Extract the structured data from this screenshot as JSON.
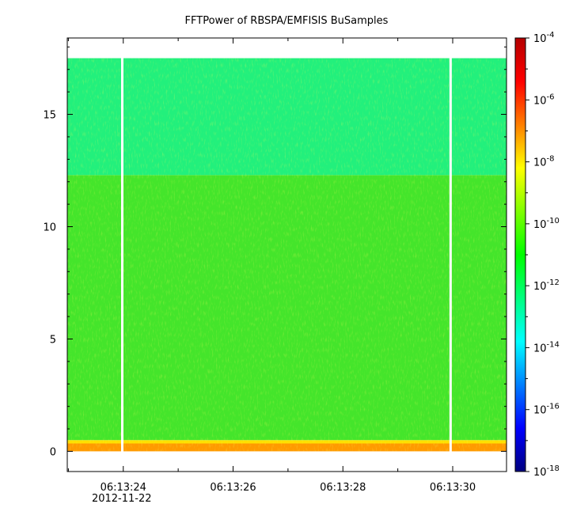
{
  "chart_data": {
    "type": "heatmap",
    "title": "FFTPower of RBSPA/EMFISIS  BuSamples",
    "xlabel": "",
    "ylabel": "",
    "x_ticks": [
      {
        "time_s": 23.52,
        "label": "06:13:24",
        "sublabel": "2012-11-22"
      },
      {
        "time_s": 25.52,
        "label": "06:13:26"
      },
      {
        "time_s": 27.52,
        "label": "06:13:28"
      },
      {
        "time_s": 29.52,
        "label": "06:13:30"
      }
    ],
    "x_start_time": "2012-11-22 06:13:22.5",
    "x_end_time": "2012-11-22 06:13:30.5",
    "xlim_seconds": [
      22.5,
      30.5
    ],
    "y_ticks": [
      0,
      5,
      10,
      15
    ],
    "ylim": [
      -0.9,
      18.4
    ],
    "colorbar": {
      "scale": "log",
      "range": [
        1e-18,
        0.0001
      ],
      "tick_labels": [
        {
          "base": "10",
          "exp": "-4"
        },
        {
          "base": "10",
          "exp": "-6"
        },
        {
          "base": "10",
          "exp": "-8"
        },
        {
          "base": "10",
          "exp": "-10"
        },
        {
          "base": "10",
          "exp": "-12"
        },
        {
          "base": "10",
          "exp": "-14"
        },
        {
          "base": "10",
          "exp": "-16"
        },
        {
          "base": "10",
          "exp": "-18"
        }
      ],
      "tick_values": [
        -4,
        -6,
        -8,
        -10,
        -12,
        -14,
        -16,
        -18
      ],
      "colormap": [
        "#00007f",
        "#0000ff",
        "#007fff",
        "#00ffff",
        "#00ff7f",
        "#00ff00",
        "#7fff00",
        "#ffff00",
        "#ff7f00",
        "#ff0000",
        "#b40000"
      ]
    },
    "regions": [
      {
        "y_from": 0.0,
        "y_to": 0.35,
        "log_power": -7.5,
        "description_color": "#ff9a00"
      },
      {
        "y_from": 0.35,
        "y_to": 0.5,
        "log_power": -8.8,
        "description_color": "#ffe000"
      },
      {
        "y_from": 0.5,
        "y_to": 12.3,
        "log_power": -10.2,
        "description_color": "#44e52b"
      },
      {
        "y_from": 12.3,
        "y_to": 17.5,
        "log_power": -11.3,
        "description_color": "#22f07c"
      }
    ],
    "data_gaps_seconds": [
      [
        23.48,
        23.52
      ],
      [
        29.46,
        29.5
      ]
    ],
    "y_data_max": 17.5,
    "grid": false,
    "legend": "colorbar-right"
  }
}
